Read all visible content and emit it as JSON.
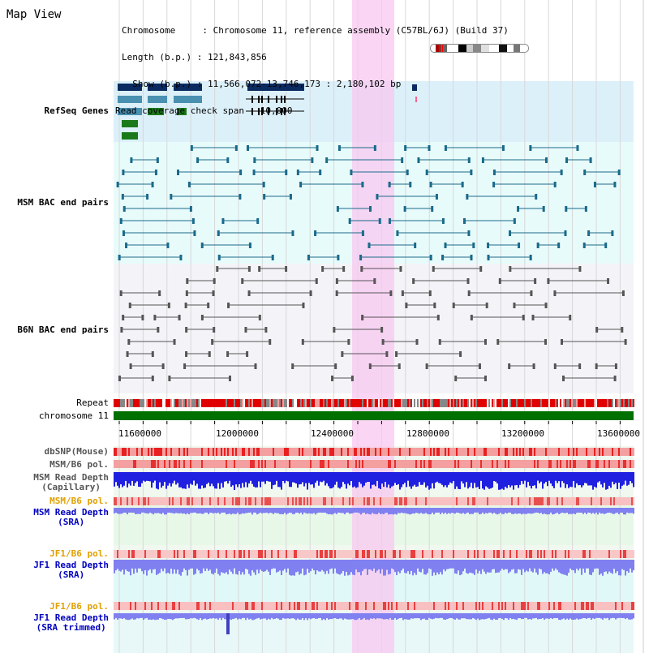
{
  "page": {
    "title": "Map View"
  },
  "header": {
    "chromosome_line": "Chromosome     : Chromosome 11, reference assembly (C57BL/6J) (Build 37)",
    "length_line": "Length (b.p.) : 121,843,856",
    "show_line": "  Show (b.p.) : 11,566,072-13,746,173 : 2,180,102 bp",
    "coverage_line": "Read coverage check span : 10,000"
  },
  "tracks": {
    "refseq": {
      "label": "RefSeq Genes",
      "color": "#000080"
    },
    "msm_bac": {
      "label": "MSM BAC end pairs",
      "color": "#006a8c"
    },
    "b6n_bac": {
      "label": "B6N BAC end pairs",
      "color": "#444444"
    },
    "repeat": {
      "label": "Repeat"
    },
    "chromosome": {
      "label": "chromosome 11"
    },
    "dbsnp": {
      "label": "dbSNP(Mouse)"
    },
    "msm_b6_pol_1": {
      "label": "MSM/B6 pol."
    },
    "msm_depth_cap": {
      "line1": "MSM Read Depth",
      "line2": "(Capillary)"
    },
    "msm_b6_pol_2": {
      "label": "MSM/B6 pol.",
      "color": "#e0a000"
    },
    "msm_depth_sra": {
      "line1": "MSM Read Depth",
      "line2": "(SRA)",
      "color": "#0000c0"
    },
    "jf1_b6_pol_1": {
      "label": "JF1/B6 pol.",
      "color": "#e0a000"
    },
    "jf1_depth_sra": {
      "line1": "JF1 Read Depth",
      "line2": "(SRA)",
      "color": "#0000c0"
    },
    "jf1_b6_pol_2": {
      "label": "JF1/B6 pol.",
      "color": "#e0a000"
    },
    "jf1_depth_trim": {
      "line1": "JF1 Read Depth",
      "line2": "(SRA trimmed)",
      "color": "#0000c0"
    }
  },
  "axis": {
    "ticks": [
      "11600000",
      "12000000",
      "12400000",
      "12800000",
      "13200000",
      "13600000"
    ]
  },
  "highlight": {
    "color": "#f8c8f0"
  }
}
